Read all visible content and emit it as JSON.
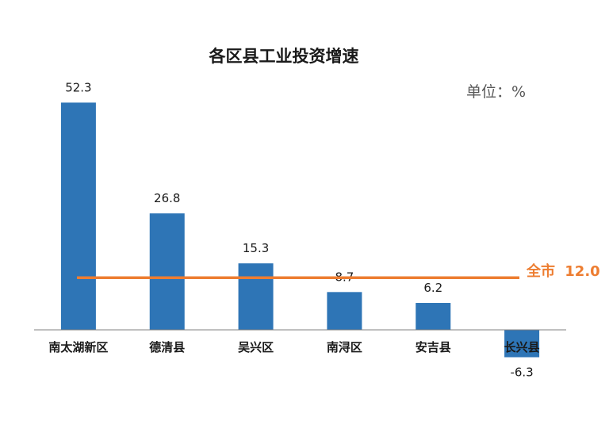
{
  "colors": {
    "bar": "#2E75B6",
    "reference": "#ED7D31",
    "axis": "#808080"
  },
  "chart_data": {
    "type": "bar",
    "title": "各区县工业投资增速",
    "unit_label": "单位：%",
    "categories": [
      "南太湖新区",
      "德清县",
      "吴兴区",
      "南浔区",
      "安吉县",
      "长兴县"
    ],
    "values": [
      52.3,
      26.8,
      15.3,
      8.7,
      6.2,
      -6.3
    ],
    "value_labels": [
      "52.3",
      "26.8",
      "15.3",
      "8.7",
      "6.2",
      "-6.3"
    ],
    "reference_line": {
      "label": "全市",
      "value": 12.0,
      "value_text": "12.0"
    },
    "ylim": [
      -7,
      56
    ],
    "grid": false,
    "legend": "none"
  }
}
